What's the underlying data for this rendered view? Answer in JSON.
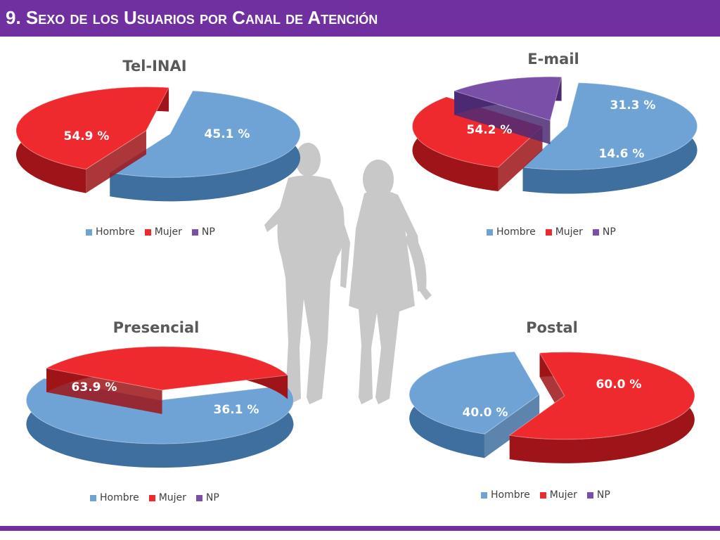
{
  "header": {
    "title": "9. Sexo de los Usuarios por Canal de Atención"
  },
  "colors": {
    "header": "#7030a0",
    "hombre": "#6fa3d6",
    "mujer": "#ee2a2e",
    "np": "#7a4fa8",
    "title_text": "#595959"
  },
  "legend": {
    "labels": [
      "Hombre",
      "Mujer",
      "NP"
    ]
  },
  "chart_data": [
    {
      "type": "pie",
      "title": "Tel-INAI",
      "categories": [
        "Hombre",
        "Mujer"
      ],
      "values": [
        54.9,
        45.1
      ],
      "data_labels": [
        "54.9 %",
        "45.1 %"
      ],
      "legend": [
        "Hombre",
        "Mujer",
        "NP"
      ],
      "legend_position": "bottom"
    },
    {
      "type": "pie",
      "title": "E-mail",
      "categories": [
        "Hombre",
        "Mujer",
        "NP"
      ],
      "values": [
        54.2,
        31.3,
        14.6
      ],
      "data_labels": [
        "54.2 %",
        "31.3 %",
        "14.6 %"
      ],
      "legend": [
        "Hombre",
        "Mujer",
        "NP"
      ],
      "legend_position": "bottom"
    },
    {
      "type": "pie",
      "title": "Presencial",
      "categories": [
        "Hombre",
        "Mujer"
      ],
      "values": [
        63.9,
        36.1
      ],
      "data_labels": [
        "63.9 %",
        "36.1 %"
      ],
      "legend": [
        "Hombre",
        "Mujer",
        "NP"
      ],
      "legend_position": "bottom"
    },
    {
      "type": "pie",
      "title": "Postal",
      "categories": [
        "Hombre",
        "Mujer"
      ],
      "values": [
        40.0,
        60.0
      ],
      "data_labels": [
        "40.0 %",
        "60.0 %"
      ],
      "legend": [
        "Hombre",
        "Mujer",
        "NP"
      ],
      "legend_position": "bottom"
    }
  ]
}
